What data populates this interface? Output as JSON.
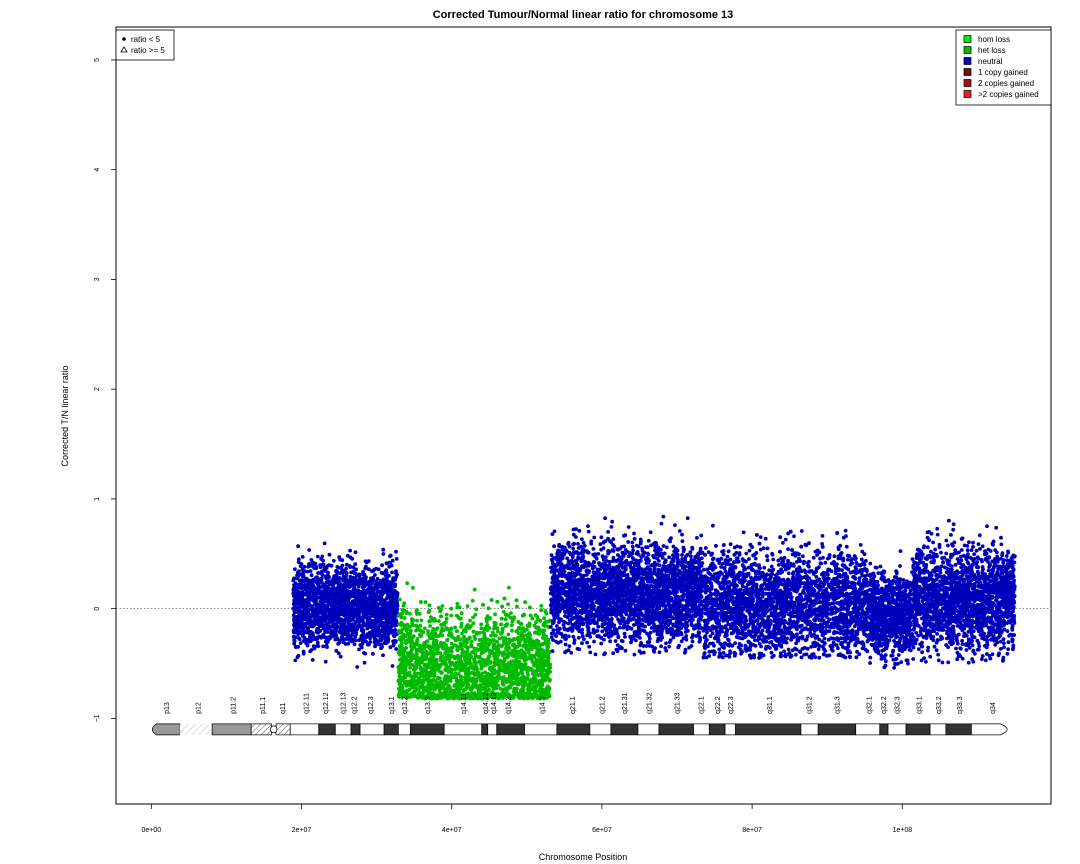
{
  "chart_data": {
    "type": "scatter",
    "title": "Corrected Tumour/Normal linear ratio for chromosome  13",
    "xlabel": "Chromosome Position",
    "ylabel": "Corrected T/N linear ratio",
    "xlim": [
      -4700000,
      119800000
    ],
    "ylim": [
      -1.78,
      5.3
    ],
    "x_ticks": [
      {
        "value": 0,
        "label": "0e+00"
      },
      {
        "value": 20000000,
        "label": "2e+07"
      },
      {
        "value": 40000000,
        "label": "4e+07"
      },
      {
        "value": 60000000,
        "label": "6e+07"
      },
      {
        "value": 80000000,
        "label": "8e+07"
      },
      {
        "value": 100000000,
        "label": "1e+08"
      }
    ],
    "y_ticks": [
      {
        "value": -1,
        "label": "−1"
      },
      {
        "value": 0,
        "label": "0"
      },
      {
        "value": 1,
        "label": "1"
      },
      {
        "value": 2,
        "label": "2"
      },
      {
        "value": 3,
        "label": "3"
      },
      {
        "value": 4,
        "label": "4"
      },
      {
        "value": 5,
        "label": "5"
      }
    ],
    "reference_line": 0,
    "shape_legend": {
      "position": "top-left",
      "items": [
        {
          "symbol": "dot",
          "label": "ratio < 5"
        },
        {
          "symbol": "triangle",
          "label": "ratio >= 5"
        }
      ]
    },
    "state_legend": {
      "position": "top-right",
      "items": [
        {
          "label": "hom loss",
          "color": "#00ee00"
        },
        {
          "label": "het loss",
          "color": "#00bb00"
        },
        {
          "label": "neutral",
          "color": "#0000bb"
        },
        {
          "label": "1 copy gained",
          "color": "#771111"
        },
        {
          "label": "2 copies gained",
          "color": "#aa1111"
        },
        {
          "label": ">2 copies gained",
          "color": "#dd2222"
        }
      ]
    },
    "segments": [
      {
        "state": "neutral",
        "color": "#0000bb",
        "x_start": 18900000,
        "x_end": 32800000,
        "mean": 0.03,
        "low": -0.55,
        "high": 0.62
      },
      {
        "state": "het loss",
        "color": "#00bb00",
        "x_start": 32900000,
        "x_end": 53100000,
        "mean": -0.52,
        "low": -0.82,
        "high": 0.3
      },
      {
        "state": "neutral",
        "color": "#0000bb",
        "x_start": 53200000,
        "x_end": 73400000,
        "mean": 0.15,
        "low": -0.42,
        "high": 0.87
      },
      {
        "state": "neutral",
        "color": "#0000bb",
        "x_start": 73500000,
        "x_end": 95500000,
        "mean": 0.05,
        "low": -0.45,
        "high": 0.82
      },
      {
        "state": "neutral",
        "color": "#0000bb",
        "x_start": 95600000,
        "x_end": 101200000,
        "mean": -0.05,
        "low": -0.55,
        "high": 0.55
      },
      {
        "state": "neutral",
        "color": "#0000bb",
        "x_start": 101300000,
        "x_end": 115000000,
        "mean": 0.1,
        "low": -0.5,
        "high": 0.85
      }
    ],
    "ideogram": {
      "y": -1.1,
      "bands": [
        {
          "name": "p13",
          "start": 0,
          "end": 3800000,
          "fill": "#999999",
          "label_x": 2000000
        },
        {
          "name": "p12",
          "start": 3800000,
          "end": 8100000,
          "fill": "hatch-light",
          "label_x": 6200000
        },
        {
          "name": "p11.2",
          "start": 8100000,
          "end": 13300000,
          "fill": "#999999",
          "label_x": 10900000
        },
        {
          "name": "p11.1",
          "start": 13300000,
          "end": 16000000,
          "fill": "hatch",
          "label_x": 14800000
        },
        {
          "name": "q11",
          "start": 16600000,
          "end": 18500000,
          "fill": "hatch",
          "label_x": 17500000
        },
        {
          "name": "q12.11",
          "start": 18500000,
          "end": 22300000,
          "fill": "#ffffff",
          "label_x": 20600000
        },
        {
          "name": "q12.12",
          "start": 22300000,
          "end": 24500000,
          "fill": "#333333",
          "label_x": 23200000
        },
        {
          "name": "q12.13",
          "start": 24500000,
          "end": 26600000,
          "fill": "#ffffff",
          "label_x": 25500000
        },
        {
          "name": "q12.2",
          "start": 26600000,
          "end": 27800000,
          "fill": "#333333",
          "label_x": 27000000
        },
        {
          "name": "q12.3",
          "start": 27800000,
          "end": 31000000,
          "fill": "#ffffff",
          "label_x": 29200000
        },
        {
          "name": "q13.1",
          "start": 31000000,
          "end": 32900000,
          "fill": "#333333",
          "label_x": 32000000
        },
        {
          "name": "q13.2",
          "start": 32900000,
          "end": 34500000,
          "fill": "#ffffff",
          "label_x": 33700000
        },
        {
          "name": "q13.3",
          "start": 34500000,
          "end": 39000000,
          "fill": "#333333",
          "label_x": 36800000
        },
        {
          "name": "q14.11",
          "start": 39000000,
          "end": 44000000,
          "fill": "#ffffff",
          "label_x": 41600000
        },
        {
          "name": "q14.12",
          "start": 44000000,
          "end": 44800000,
          "fill": "#333333",
          "label_x": 44500000
        },
        {
          "name": "q14.13",
          "start": 44800000,
          "end": 46000000,
          "fill": "#ffffff",
          "label_x": 45600000
        },
        {
          "name": "q14.2",
          "start": 46000000,
          "end": 49700000,
          "fill": "#333333",
          "label_x": 47500000
        },
        {
          "name": "q14.3",
          "start": 49700000,
          "end": 54000000,
          "fill": "#ffffff",
          "label_x": 52000000
        },
        {
          "name": "q21.1",
          "start": 54000000,
          "end": 58400000,
          "fill": "#333333",
          "label_x": 56100000
        },
        {
          "name": "q21.2",
          "start": 58400000,
          "end": 61200000,
          "fill": "#ffffff",
          "label_x": 60000000
        },
        {
          "name": "q21.31",
          "start": 61200000,
          "end": 64800000,
          "fill": "#333333",
          "label_x": 63000000
        },
        {
          "name": "q21.32",
          "start": 64800000,
          "end": 67600000,
          "fill": "#ffffff",
          "label_x": 66300000
        },
        {
          "name": "q21.33",
          "start": 67600000,
          "end": 72200000,
          "fill": "#333333",
          "label_x": 70000000
        },
        {
          "name": "q22.1",
          "start": 72200000,
          "end": 74300000,
          "fill": "#ffffff",
          "label_x": 73200000
        },
        {
          "name": "q22.2",
          "start": 74300000,
          "end": 76400000,
          "fill": "#333333",
          "label_x": 75400000
        },
        {
          "name": "q22.3",
          "start": 76400000,
          "end": 77800000,
          "fill": "#ffffff",
          "label_x": 77100000
        },
        {
          "name": "q31.1",
          "start": 77800000,
          "end": 86500000,
          "fill": "#333333",
          "label_x": 82300000
        },
        {
          "name": "q31.2",
          "start": 86500000,
          "end": 88800000,
          "fill": "#ffffff",
          "label_x": 87600000
        },
        {
          "name": "q31.3",
          "start": 88800000,
          "end": 93800000,
          "fill": "#333333",
          "label_x": 91300000
        },
        {
          "name": "q32.1",
          "start": 93800000,
          "end": 97000000,
          "fill": "#ffffff",
          "label_x": 95600000
        },
        {
          "name": "q32.2",
          "start": 97000000,
          "end": 98100000,
          "fill": "#333333",
          "label_x": 97500000
        },
        {
          "name": "q32.3",
          "start": 98100000,
          "end": 100500000,
          "fill": "#ffffff",
          "label_x": 99300000
        },
        {
          "name": "q33.1",
          "start": 100500000,
          "end": 103700000,
          "fill": "#333333",
          "label_x": 102200000
        },
        {
          "name": "q33.2",
          "start": 103700000,
          "end": 105800000,
          "fill": "#ffffff",
          "label_x": 104800000
        },
        {
          "name": "q33.3",
          "start": 105800000,
          "end": 109200000,
          "fill": "#333333",
          "label_x": 107600000
        },
        {
          "name": "q34",
          "start": 109200000,
          "end": 114100000,
          "fill": "#ffffff",
          "label_x": 112000000
        }
      ]
    }
  }
}
